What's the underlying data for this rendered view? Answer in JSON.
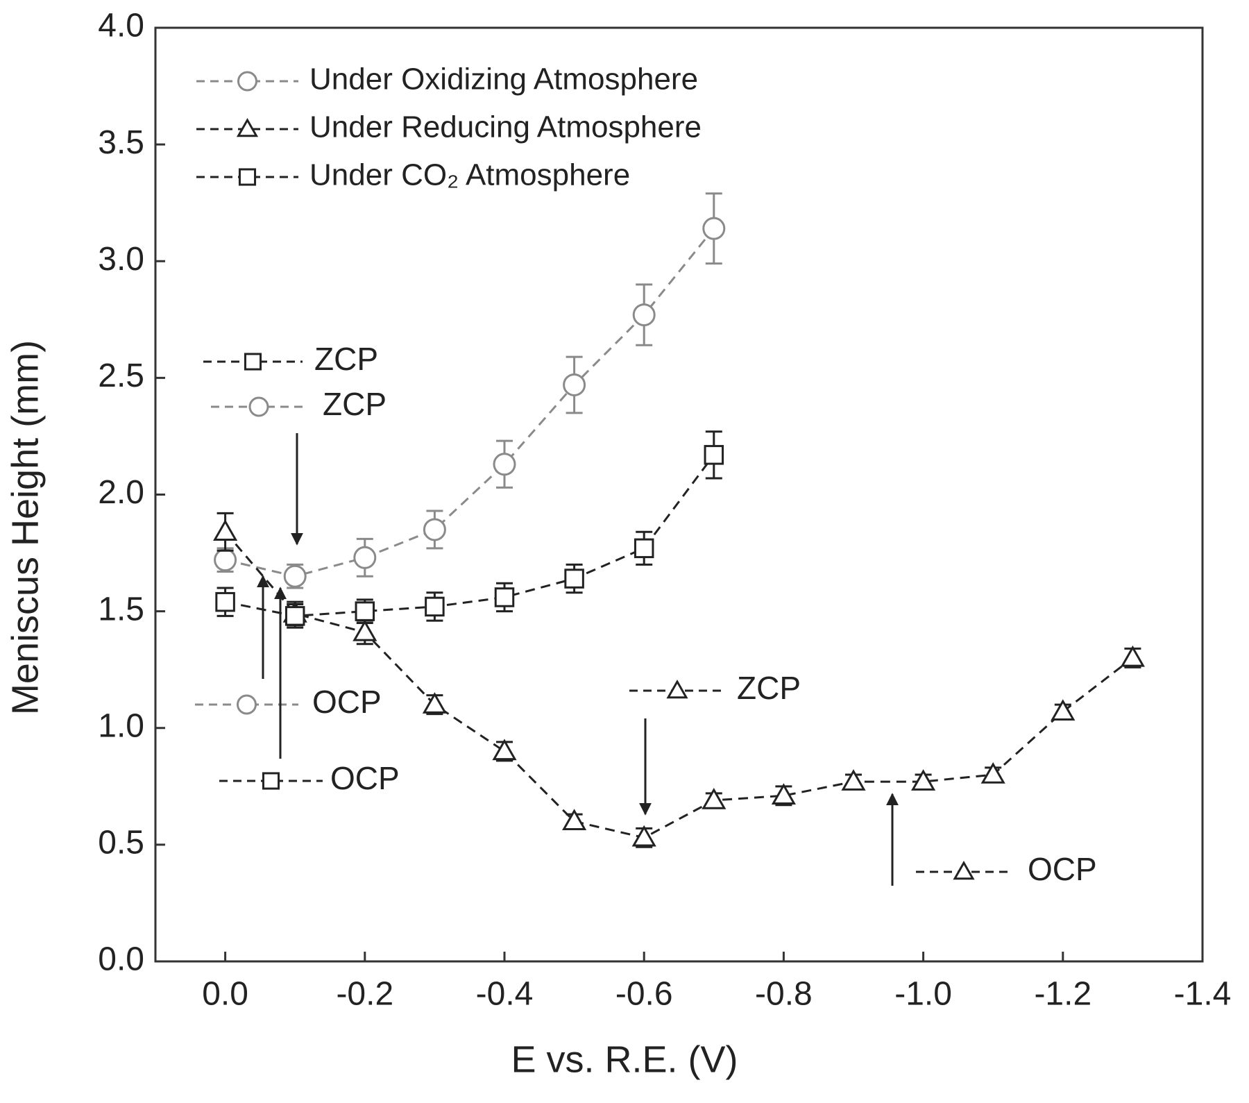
{
  "chart_data": {
    "type": "scatter",
    "x_label": "E vs. R.E. (V)",
    "y_label": "Meniscus Height (mm)",
    "xlim": [
      0.1,
      -1.4
    ],
    "ylim": [
      0,
      4
    ],
    "xticks": [
      {
        "value": 0,
        "label": "0.0"
      },
      -0.2,
      -0.4,
      -0.6,
      -0.8,
      {
        "value": -1,
        "label": "-1.0"
      },
      -1.2,
      -1.4
    ],
    "yticks": [
      {
        "value": 0,
        "label": "0.0"
      },
      0.5,
      {
        "value": 1,
        "label": "1.0"
      },
      1.5,
      {
        "value": 2,
        "label": "2.0"
      },
      2.5,
      {
        "value": 3,
        "label": "3.0"
      },
      3.5,
      {
        "value": 4,
        "label": "4.0"
      }
    ],
    "grid": false,
    "legend": "upper left",
    "series": [
      {
        "name": "Under Oxidizing Atmosphere",
        "color": "#8a8a8a",
        "marker": "circle",
        "x": [
          0,
          -0.1,
          -0.2,
          -0.3,
          -0.4,
          -0.5,
          -0.6,
          -0.7
        ],
        "values": [
          1.72,
          1.65,
          1.73,
          1.85,
          2.13,
          2.47,
          2.77,
          3.14
        ],
        "errors": [
          0.05,
          0.05,
          0.08,
          0.08,
          0.1,
          0.12,
          0.13,
          0.15
        ]
      },
      {
        "name": "Under Reducing Atmosphere",
        "color": "#222222",
        "marker": "triangle",
        "x": [
          0,
          -0.1,
          -0.2,
          -0.3,
          -0.4,
          -0.5,
          -0.6,
          -0.7,
          -0.8,
          -0.9,
          -1.0,
          -1.1,
          -1.2,
          -1.3
        ],
        "values": [
          1.84,
          1.49,
          1.41,
          1.1,
          0.9,
          0.6,
          0.53,
          0.69,
          0.71,
          0.77,
          0.77,
          0.8,
          1.07,
          1.3
        ],
        "errors": [
          0.08,
          0.05,
          0.05,
          0.04,
          0.04,
          0.03,
          0.04,
          0.03,
          0.04,
          0.03,
          0.03,
          0.03,
          0.03,
          0.04
        ]
      },
      {
        "name": "Under CO₂ Atmosphere",
        "color": "#222222",
        "marker": "square",
        "x": [
          0,
          -0.1,
          -0.2,
          -0.3,
          -0.4,
          -0.5,
          -0.6,
          -0.7
        ],
        "values": [
          1.54,
          1.48,
          1.5,
          1.52,
          1.56,
          1.64,
          1.77,
          2.17
        ],
        "errors": [
          0.06,
          0.05,
          0.05,
          0.06,
          0.06,
          0.06,
          0.07,
          0.1
        ]
      }
    ],
    "annotations": [
      {
        "text": "ZCP",
        "marker": "square",
        "color": "#222222"
      },
      {
        "text": "ZCP",
        "marker": "circle",
        "color": "#8a8a8a"
      },
      {
        "text": "OCP",
        "marker": "circle",
        "color": "#8a8a8a"
      },
      {
        "text": "OCP",
        "marker": "square",
        "color": "#222222"
      },
      {
        "text": "ZCP",
        "marker": "triangle",
        "color": "#222222"
      },
      {
        "text": "OCP",
        "marker": "triangle",
        "color": "#222222"
      }
    ]
  }
}
